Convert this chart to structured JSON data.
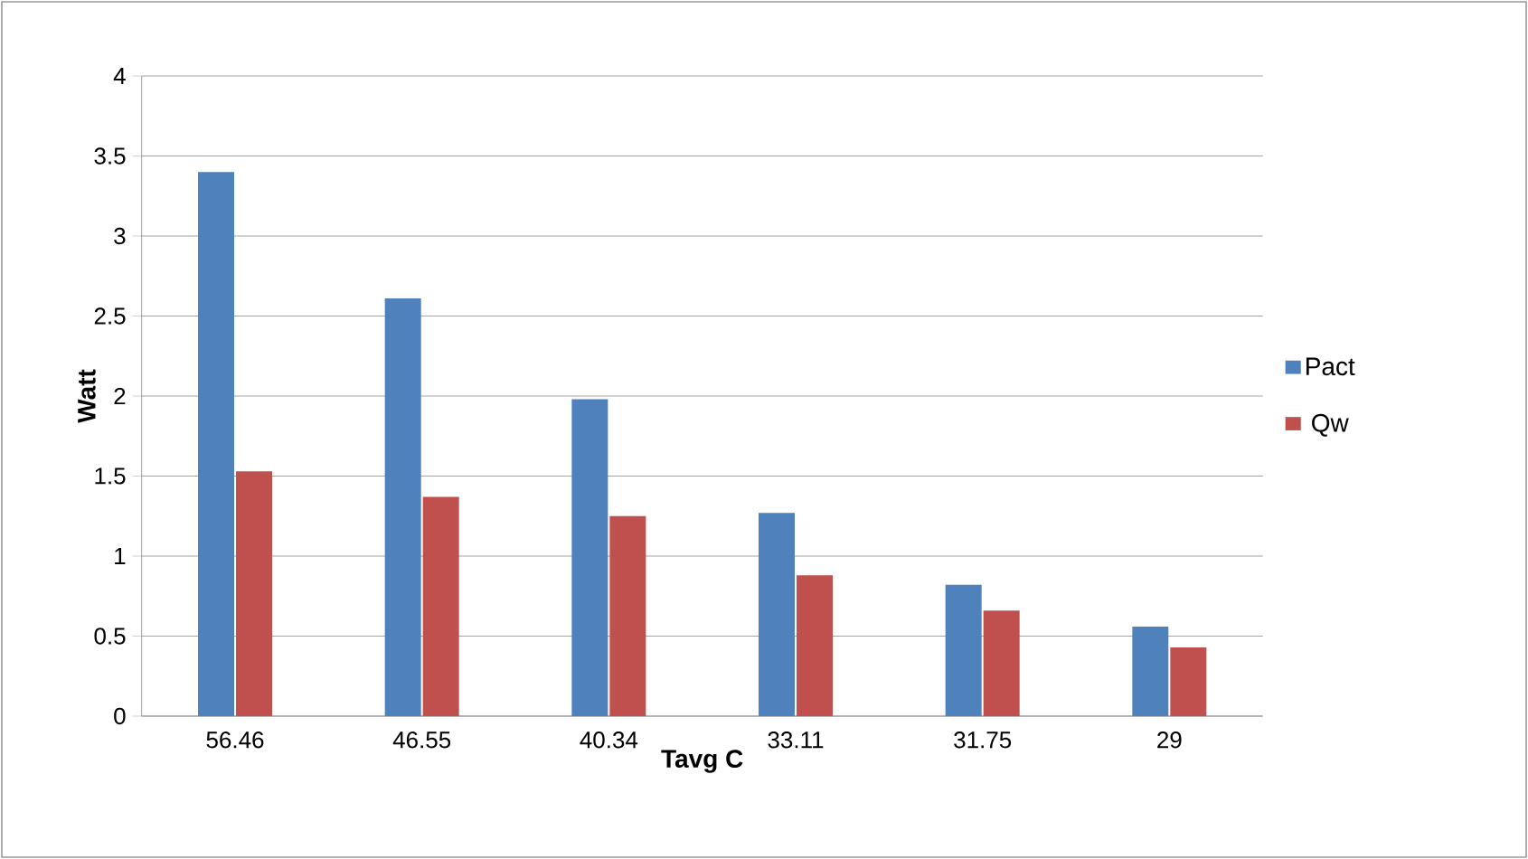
{
  "chart_data": {
    "type": "bar",
    "xlabel": "Tavg C",
    "ylabel": "Watt",
    "categories": [
      "56.46",
      "46.55",
      "40.34",
      "33.11",
      "31.75",
      "29"
    ],
    "series": [
      {
        "name": "Pact",
        "color": "#4f81bd",
        "values": [
          3.4,
          2.61,
          1.98,
          1.27,
          0.82,
          0.56
        ]
      },
      {
        "name": "Qw",
        "color": "#c0504d",
        "values": [
          1.53,
          1.37,
          1.25,
          0.88,
          0.66,
          0.43
        ]
      }
    ],
    "ylim": [
      0,
      4
    ],
    "yticks": [
      0,
      0.5,
      1,
      1.5,
      2,
      2.5,
      3,
      3.5,
      4
    ],
    "grid": "y",
    "legend": "right"
  }
}
